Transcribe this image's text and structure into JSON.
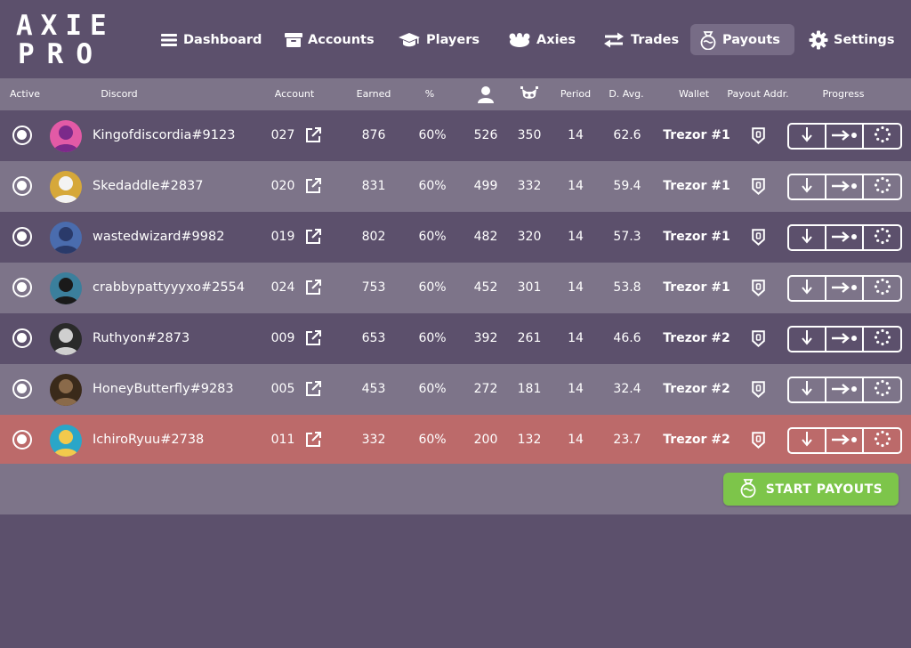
{
  "brand": {
    "line1": "AXIE",
    "line2": "PRO"
  },
  "nav": [
    {
      "label": "Dashboard",
      "icon": "list-icon"
    },
    {
      "label": "Accounts",
      "icon": "archive-icon"
    },
    {
      "label": "Players",
      "icon": "graduation-cap-icon"
    },
    {
      "label": "Axies",
      "icon": "axie-icon"
    },
    {
      "label": "Trades",
      "icon": "exchange-icon"
    },
    {
      "label": "Payouts",
      "icon": "money-bag-icon",
      "active": true
    },
    {
      "label": "Settings",
      "icon": "gear-icon"
    }
  ],
  "table": {
    "headers": {
      "active": "Active",
      "discord": "Discord",
      "account": "Account",
      "earned": "Earned",
      "pct": "%",
      "player_icon": "user-icon",
      "axie_icon": "axie-skull-icon",
      "period": "Period",
      "davg": "D. Avg.",
      "wallet": "Wallet",
      "payout": "Payout Addr.",
      "progress": "Progress"
    },
    "rows": [
      {
        "discord": "Kingofdiscordia#9123",
        "account": "027",
        "earned": "876",
        "pct": "60%",
        "players": "526",
        "axies": "350",
        "period": "14",
        "davg": "62.6",
        "wallet": "Trezor #1",
        "status": "normal"
      },
      {
        "discord": "Skedaddle#2837",
        "account": "020",
        "earned": "831",
        "pct": "60%",
        "players": "499",
        "axies": "332",
        "period": "14",
        "davg": "59.4",
        "wallet": "Trezor #1",
        "status": "normal"
      },
      {
        "discord": "wastedwizard#9982",
        "account": "019",
        "earned": "802",
        "pct": "60%",
        "players": "482",
        "axies": "320",
        "period": "14",
        "davg": "57.3",
        "wallet": "Trezor #1",
        "status": "normal"
      },
      {
        "discord": "crabbypattyyyxo#2554",
        "account": "024",
        "earned": "753",
        "pct": "60%",
        "players": "452",
        "axies": "301",
        "period": "14",
        "davg": "53.8",
        "wallet": "Trezor #1",
        "status": "normal"
      },
      {
        "discord": "Ruthyon#2873",
        "account": "009",
        "earned": "653",
        "pct": "60%",
        "players": "392",
        "axies": "261",
        "period": "14",
        "davg": "46.6",
        "wallet": "Trezor #2",
        "status": "normal"
      },
      {
        "discord": "HoneyButterfly#9283",
        "account": "005",
        "earned": "453",
        "pct": "60%",
        "players": "272",
        "axies": "181",
        "period": "14",
        "davg": "32.4",
        "wallet": "Trezor #2",
        "status": "normal"
      },
      {
        "discord": "IchiroRyuu#2738",
        "account": "011",
        "earned": "332",
        "pct": "60%",
        "players": "200",
        "axies": "132",
        "period": "14",
        "davg": "23.7",
        "wallet": "Trezor #2",
        "status": "alert"
      }
    ]
  },
  "actions": {
    "start_payouts": "START PAYOUTS"
  },
  "colors": {
    "background": "#5c506c",
    "row_light": "#7d7489",
    "row_alert": "#bc6a6a",
    "accent_green": "#7dc54a",
    "nav_active": "#776c86"
  }
}
